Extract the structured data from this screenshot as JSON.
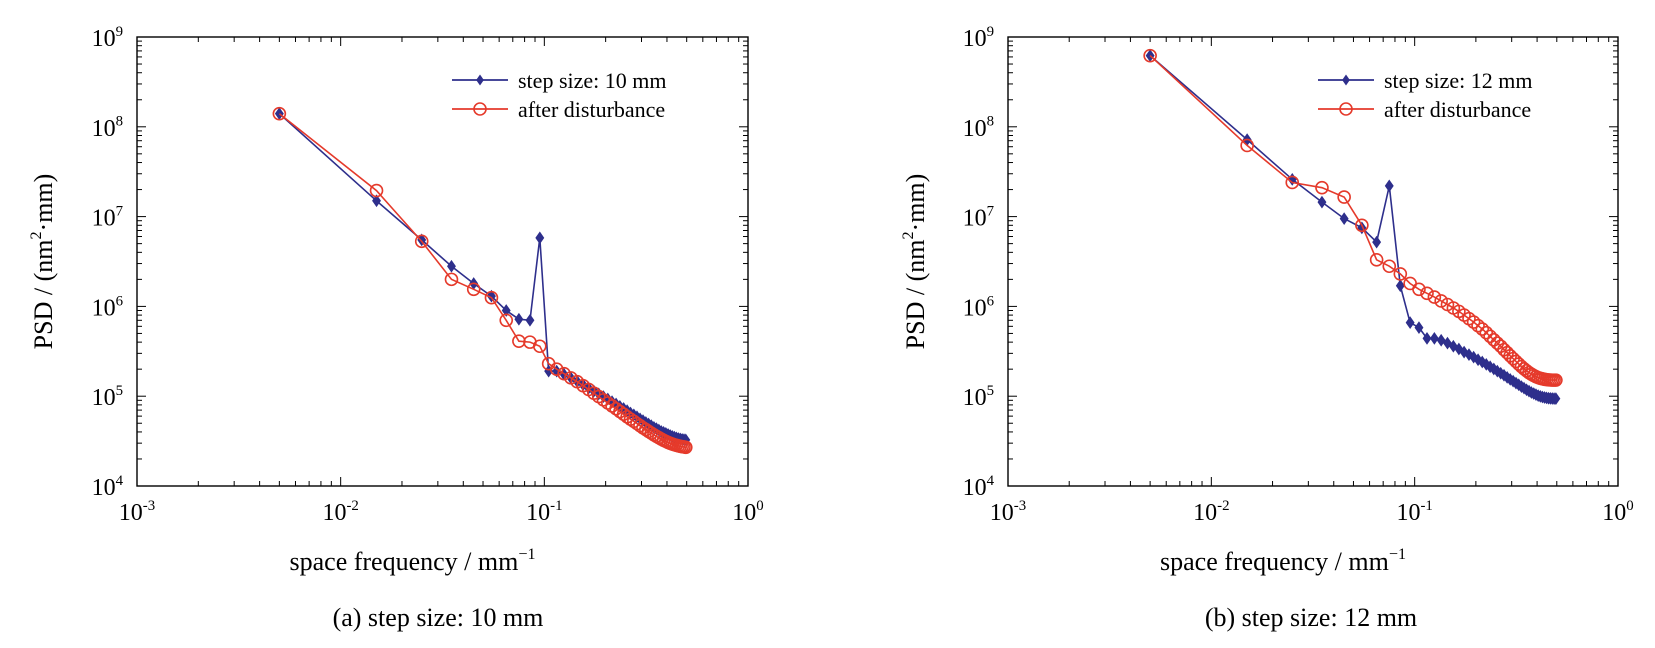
{
  "chart_data": [
    {
      "type": "line",
      "xscale": "log",
      "yscale": "log",
      "xlim": [
        0.001,
        1
      ],
      "ylim": [
        10000,
        1000000000
      ],
      "x_ticks": [
        {
          "base": "10",
          "exp": "-3"
        },
        {
          "base": "10",
          "exp": "-2"
        },
        {
          "base": "10",
          "exp": "-1"
        },
        {
          "base": "10",
          "exp": "0"
        }
      ],
      "y_ticks": [
        {
          "base": "10",
          "exp": "4"
        },
        {
          "base": "10",
          "exp": "5"
        },
        {
          "base": "10",
          "exp": "6"
        },
        {
          "base": "10",
          "exp": "7"
        },
        {
          "base": "10",
          "exp": "8"
        },
        {
          "base": "10",
          "exp": "9"
        }
      ],
      "xlabel": {
        "text": "space frequency / mm",
        "sup": "−1"
      },
      "ylabel": {
        "pre": "PSD / (nm",
        "sup": "2",
        "post": "·mm)"
      },
      "caption": "(a) step size: 10 mm",
      "legend_position": "top-right",
      "grid": false,
      "series": [
        {
          "name": "step size: 10 mm",
          "color": "#2e2f8c",
          "marker": "diamond",
          "x": [
            0.005,
            0.015,
            0.025,
            0.035,
            0.045,
            0.055,
            0.065,
            0.075,
            0.085,
            0.095,
            0.105,
            0.115,
            0.125,
            0.135,
            0.145,
            0.155,
            0.165,
            0.175,
            0.185,
            0.195,
            0.205,
            0.215,
            0.225,
            0.235,
            0.245,
            0.255,
            0.265,
            0.275,
            0.285,
            0.295,
            0.305,
            0.315,
            0.325,
            0.335,
            0.345,
            0.355,
            0.365,
            0.375,
            0.385,
            0.395,
            0.405,
            0.415,
            0.425,
            0.435,
            0.445,
            0.455,
            0.465,
            0.475,
            0.485,
            0.495
          ],
          "y": [
            140000000,
            15000000,
            5500000,
            2800000,
            1800000,
            1300000,
            900000,
            720000,
            700000,
            5800000,
            190000,
            190000,
            175000,
            160000,
            146000,
            134000,
            123000,
            114000,
            106000,
            99000,
            93000,
            87000,
            82000,
            77000,
            73000,
            69000,
            65000,
            62000,
            59000,
            56000,
            53500,
            51000,
            49000,
            47000,
            45000,
            43500,
            42000,
            40500,
            39500,
            38500,
            37500,
            36500,
            35700,
            35000,
            34300,
            33800,
            33400,
            33000,
            32800,
            32600
          ]
        },
        {
          "name": "after disturbance",
          "color": "#e53a2b",
          "marker": "circle",
          "x": [
            0.005,
            0.015,
            0.025,
            0.035,
            0.045,
            0.055,
            0.065,
            0.075,
            0.085,
            0.095,
            0.105,
            0.115,
            0.125,
            0.135,
            0.145,
            0.155,
            0.165,
            0.175,
            0.185,
            0.195,
            0.205,
            0.215,
            0.225,
            0.235,
            0.245,
            0.255,
            0.265,
            0.275,
            0.285,
            0.295,
            0.305,
            0.315,
            0.325,
            0.335,
            0.345,
            0.355,
            0.365,
            0.375,
            0.385,
            0.395,
            0.405,
            0.415,
            0.425,
            0.435,
            0.445,
            0.455,
            0.465,
            0.475,
            0.485,
            0.495
          ],
          "y": [
            140000000,
            19500000,
            5300000,
            2000000,
            1550000,
            1250000,
            700000,
            410000,
            400000,
            360000,
            230000,
            200000,
            178000,
            160000,
            145000,
            131000,
            119000,
            108000,
            99000,
            91000,
            84000,
            78000,
            72500,
            67500,
            63000,
            59000,
            55500,
            52500,
            49500,
            47000,
            44500,
            42500,
            40500,
            38800,
            37200,
            35800,
            34500,
            33300,
            32300,
            31400,
            30600,
            29900,
            29300,
            28800,
            28400,
            28000,
            27700,
            27400,
            27200,
            27000
          ]
        }
      ]
    },
    {
      "type": "line",
      "xscale": "log",
      "yscale": "log",
      "xlim": [
        0.001,
        1
      ],
      "ylim": [
        10000,
        1000000000
      ],
      "x_ticks": [
        {
          "base": "10",
          "exp": "-3"
        },
        {
          "base": "10",
          "exp": "-2"
        },
        {
          "base": "10",
          "exp": "-1"
        },
        {
          "base": "10",
          "exp": "0"
        }
      ],
      "y_ticks": [
        {
          "base": "10",
          "exp": "4"
        },
        {
          "base": "10",
          "exp": "5"
        },
        {
          "base": "10",
          "exp": "6"
        },
        {
          "base": "10",
          "exp": "7"
        },
        {
          "base": "10",
          "exp": "8"
        },
        {
          "base": "10",
          "exp": "9"
        }
      ],
      "xlabel": {
        "text": "space frequency / mm",
        "sup": "−1"
      },
      "ylabel": {
        "pre": "PSD / (nm",
        "sup": "2",
        "post": "·mm)"
      },
      "caption": "(b) step size: 12 mm",
      "legend_position": "top-right",
      "grid": false,
      "series": [
        {
          "name": "step size: 12 mm",
          "color": "#2e2f8c",
          "marker": "diamond",
          "x": [
            0.005,
            0.015,
            0.025,
            0.035,
            0.045,
            0.055,
            0.065,
            0.075,
            0.085,
            0.095,
            0.105,
            0.115,
            0.125,
            0.135,
            0.145,
            0.155,
            0.165,
            0.175,
            0.185,
            0.195,
            0.205,
            0.215,
            0.225,
            0.235,
            0.245,
            0.255,
            0.265,
            0.275,
            0.285,
            0.295,
            0.305,
            0.315,
            0.325,
            0.335,
            0.345,
            0.355,
            0.365,
            0.375,
            0.385,
            0.395,
            0.405,
            0.415,
            0.425,
            0.435,
            0.445,
            0.455,
            0.465,
            0.475,
            0.485,
            0.495
          ],
          "y": [
            620000000,
            72000000,
            26000000,
            14500000,
            9500000,
            7500000,
            5200000,
            22000000,
            1700000,
            660000,
            580000,
            440000,
            440000,
            420000,
            390000,
            360000,
            335000,
            310000,
            290000,
            272000,
            255000,
            240000,
            226000,
            213000,
            201000,
            190000,
            180000,
            171000,
            162000,
            154000,
            147000,
            140000,
            134000,
            128000,
            123000,
            118000,
            114000,
            110000,
            107000,
            104000,
            101500,
            99500,
            98000,
            96800,
            95800,
            95000,
            94500,
            94200,
            94000,
            94000
          ]
        },
        {
          "name": "after disturbance",
          "color": "#e53a2b",
          "marker": "circle",
          "x": [
            0.005,
            0.015,
            0.025,
            0.035,
            0.045,
            0.055,
            0.065,
            0.075,
            0.085,
            0.095,
            0.105,
            0.115,
            0.125,
            0.135,
            0.145,
            0.155,
            0.165,
            0.175,
            0.185,
            0.195,
            0.205,
            0.215,
            0.225,
            0.235,
            0.245,
            0.255,
            0.265,
            0.275,
            0.285,
            0.295,
            0.305,
            0.315,
            0.325,
            0.335,
            0.345,
            0.355,
            0.365,
            0.375,
            0.385,
            0.395,
            0.405,
            0.415,
            0.425,
            0.435,
            0.445,
            0.455,
            0.465,
            0.475,
            0.485,
            0.495
          ],
          "y": [
            620000000,
            62000000,
            24000000,
            21000000,
            16500000,
            8000000,
            3300000,
            2800000,
            2300000,
            1800000,
            1550000,
            1400000,
            1270000,
            1150000,
            1050000,
            960000,
            880000,
            800000,
            730000,
            670000,
            610000,
            560000,
            510000,
            465000,
            425000,
            390000,
            360000,
            330000,
            305000,
            282000,
            262000,
            244000,
            228000,
            214000,
            202000,
            192000,
            183000,
            176000,
            170000,
            165000,
            161000,
            158000,
            156000,
            154000,
            153000,
            152000,
            151500,
            151000,
            151000,
            151000
          ]
        }
      ]
    }
  ]
}
